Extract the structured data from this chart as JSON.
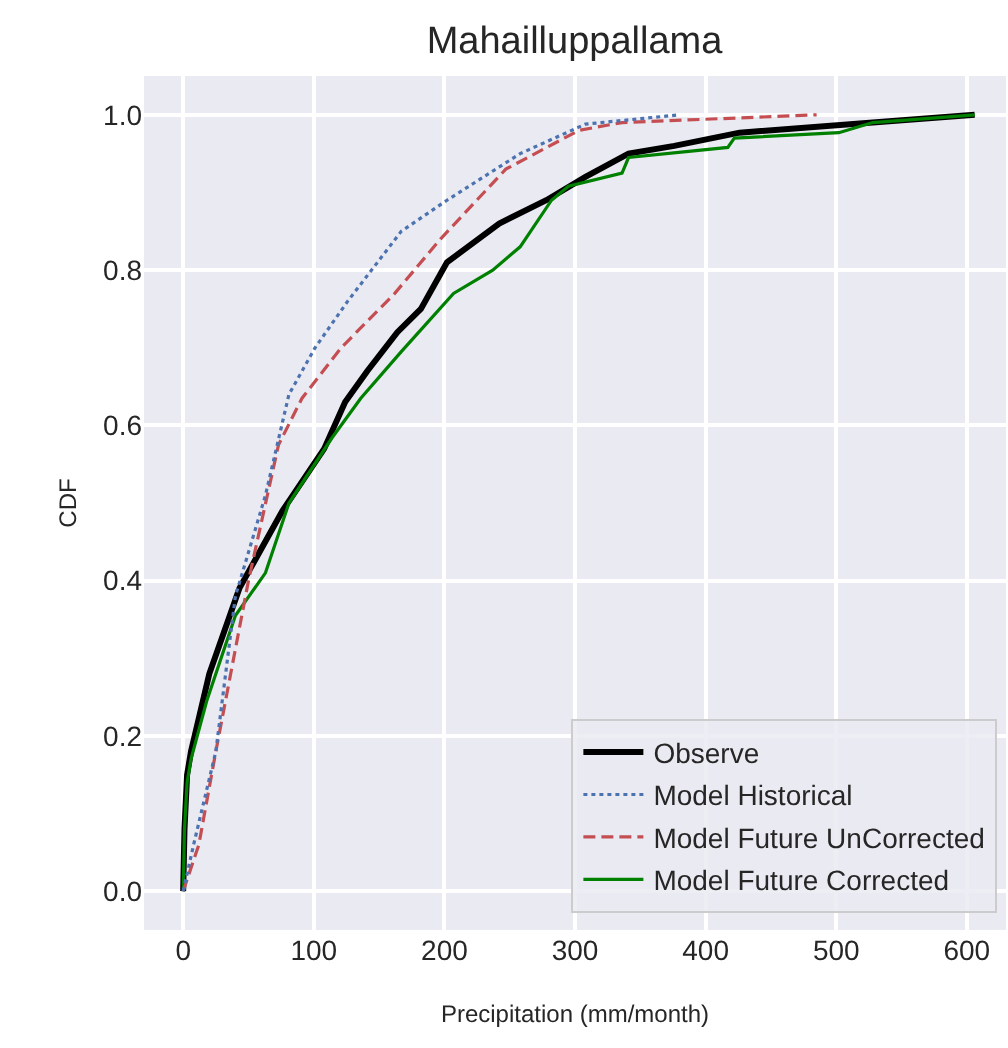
{
  "chart_data": {
    "type": "line",
    "title": "Mahailluppallama",
    "xlabel": "Precipitation (mm/month)",
    "ylabel": "CDF",
    "xlim": [
      -30,
      630
    ],
    "ylim": [
      -0.05,
      1.05
    ],
    "xticks": [
      0,
      100,
      200,
      300,
      400,
      500,
      600
    ],
    "yticks": [
      {
        "value": 0,
        "label": "0.0"
      },
      {
        "value": 0.2,
        "label": "0.2"
      },
      {
        "value": 0.4,
        "label": "0.4"
      },
      {
        "value": 0.6,
        "label": "0.6"
      },
      {
        "value": 0.8,
        "label": "0.8"
      },
      {
        "value": 1,
        "label": "1.0"
      }
    ],
    "grid": true,
    "legend": "bottom right",
    "marker": "none",
    "series": [
      {
        "name": "Observe",
        "color": "#000000",
        "line_style": "solid",
        "x": [
          0,
          1,
          3,
          6,
          20,
          43,
          76,
          108,
          124,
          141,
          164,
          182,
          202,
          242,
          278,
          308,
          341,
          376,
          426,
          528,
          606
        ],
        "values": [
          0,
          0.08,
          0.15,
          0.18,
          0.28,
          0.39,
          0.49,
          0.57,
          0.63,
          0.67,
          0.72,
          0.75,
          0.81,
          0.86,
          0.89,
          0.92,
          0.95,
          0.96,
          0.977,
          0.99,
          1.0
        ]
      },
      {
        "name": "Model Historical",
        "color": "#4c72b0",
        "line_style": "dotted",
        "x": [
          0,
          8,
          25,
          40,
          63,
          81,
          101,
          126,
          167,
          202,
          258,
          308,
          380
        ],
        "values": [
          0,
          0.06,
          0.18,
          0.38,
          0.51,
          0.64,
          0.7,
          0.76,
          0.85,
          0.89,
          0.95,
          0.988,
          1.0
        ]
      },
      {
        "name": "Model Future UnCorrected",
        "color": "#c44e52",
        "line_style": "dashed",
        "x": [
          0,
          12,
          25,
          50,
          73,
          91,
          121,
          162,
          197,
          247,
          303,
          336,
          485
        ],
        "values": [
          0,
          0.06,
          0.18,
          0.4,
          0.575,
          0.635,
          0.7,
          0.77,
          0.84,
          0.93,
          0.98,
          0.99,
          1.0
        ]
      },
      {
        "name": "Model Future Corrected",
        "color": "#008000",
        "line_style": "solid",
        "x": [
          0,
          1,
          3,
          6,
          18,
          40,
          63,
          81,
          114,
          136,
          167,
          207,
          237,
          258,
          282,
          295,
          336,
          341,
          417,
          422,
          502,
          528,
          606
        ],
        "values": [
          0,
          0.08,
          0.14,
          0.17,
          0.245,
          0.355,
          0.41,
          0.5,
          0.584,
          0.635,
          0.695,
          0.77,
          0.8,
          0.83,
          0.89,
          0.908,
          0.925,
          0.945,
          0.958,
          0.97,
          0.977,
          0.99,
          1.0
        ]
      }
    ]
  }
}
